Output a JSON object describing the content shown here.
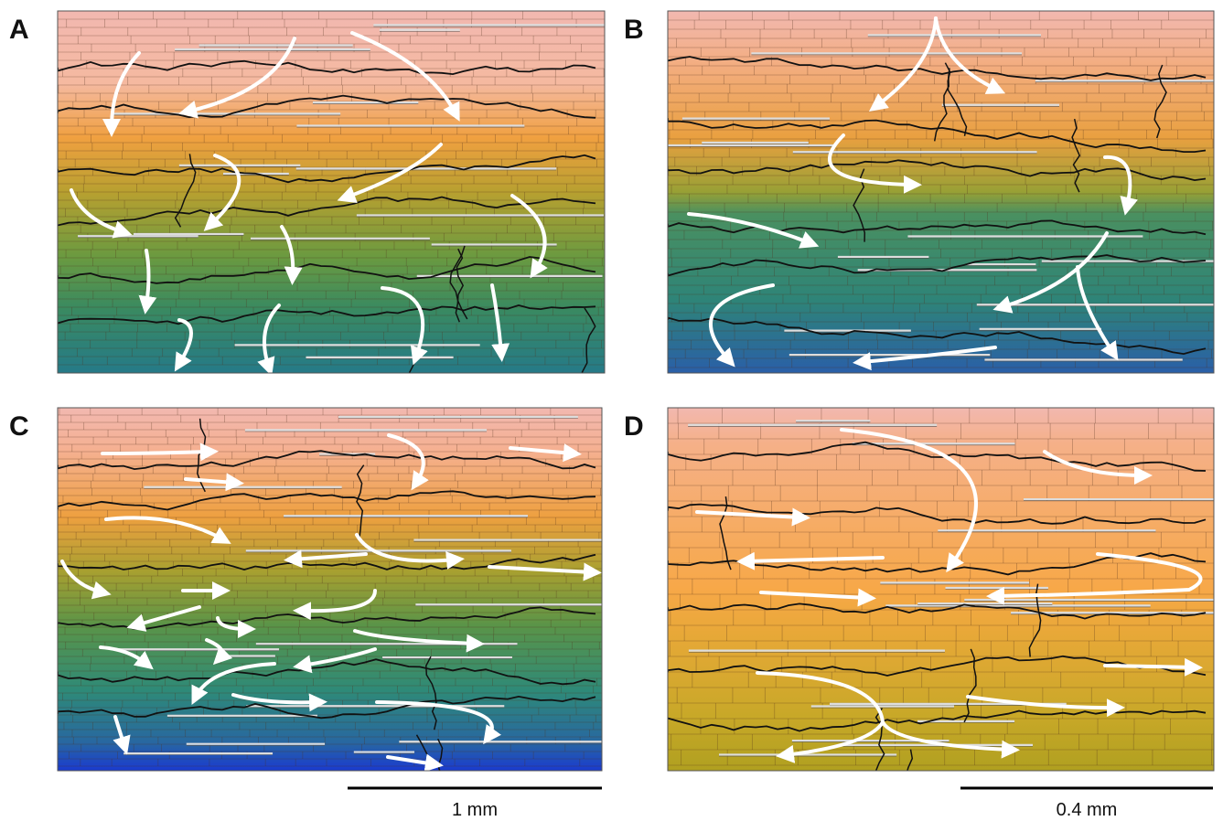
{
  "panels": [
    {
      "label": "A"
    },
    {
      "label": "B"
    },
    {
      "label": "C"
    },
    {
      "label": "D"
    }
  ],
  "scale_bars": [
    {
      "label": "1 mm"
    },
    {
      "label": "0.4 mm"
    }
  ]
}
